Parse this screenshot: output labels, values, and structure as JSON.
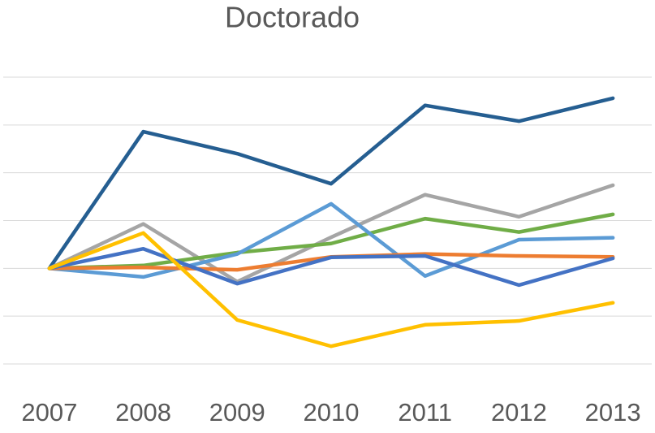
{
  "chart_data": {
    "type": "line",
    "title": "Doctorado",
    "categories": [
      "2007",
      "2008",
      "2009",
      "2010",
      "2011",
      "2012",
      "2013"
    ],
    "series": [
      {
        "color": "#255e91",
        "values": [
          2,
          4.86,
          4.4,
          3.77,
          5.41,
          5.08,
          5.56
        ]
      },
      {
        "color": "#a5a5a5",
        "values": [
          2,
          2.93,
          1.72,
          2.65,
          3.54,
          3.08,
          3.74
        ]
      },
      {
        "color": "#70ad47",
        "values": [
          2,
          2.06,
          2.33,
          2.52,
          3.04,
          2.76,
          3.13
        ]
      },
      {
        "color": "#5b9bd5",
        "values": [
          2,
          1.82,
          2.3,
          3.35,
          1.84,
          2.6,
          2.64
        ]
      },
      {
        "color": "#ed7d31",
        "values": [
          2,
          2.02,
          1.97,
          2.24,
          2.3,
          2.26,
          2.24
        ]
      },
      {
        "color": "#4472c4",
        "values": [
          2,
          2.41,
          1.68,
          2.23,
          2.26,
          1.65,
          2.21
        ]
      },
      {
        "color": "#ffc000",
        "values": [
          2,
          2.74,
          0.92,
          0.37,
          0.82,
          0.9,
          1.28
        ]
      }
    ],
    "ylim": [
      0,
      6
    ],
    "yticks": [
      0,
      1,
      2,
      3,
      4,
      5,
      6
    ],
    "grid": true
  }
}
